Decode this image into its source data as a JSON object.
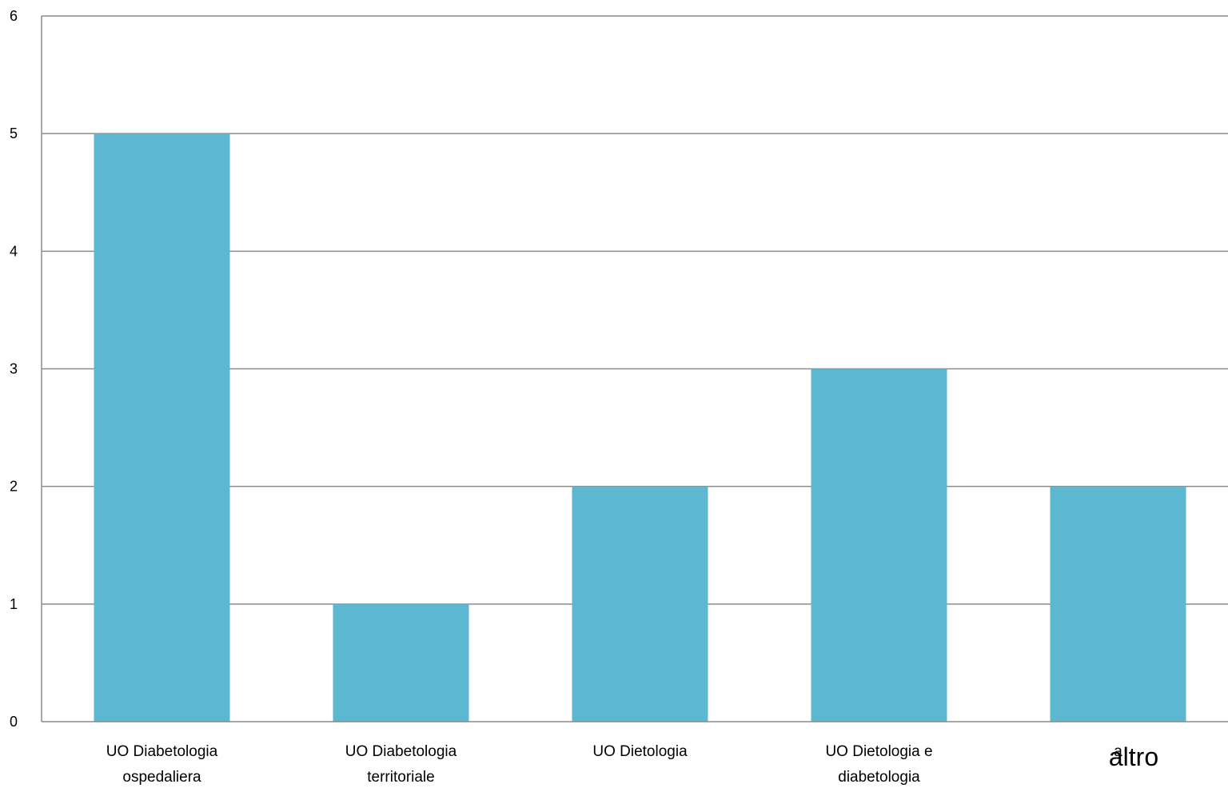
{
  "chart_data": {
    "type": "bar",
    "categories": [
      [
        "UO  Diabetologia",
        "ospedaliera"
      ],
      [
        "UO  Diabetologia",
        "territoriale"
      ],
      [
        "UO Dietologia"
      ],
      [
        "UO Dietologia  e",
        "diabetologia"
      ],
      [
        "a"
      ]
    ],
    "values": [
      5,
      1,
      2,
      3,
      2
    ],
    "ylim": [
      0,
      6
    ],
    "yticks": [
      "0",
      "1",
      "2",
      "3",
      "4",
      "5",
      "6"
    ],
    "grid": true,
    "bar_color": "#5bb8d0",
    "grid_color": "#8c8c8c",
    "overlay_label": "altro"
  }
}
